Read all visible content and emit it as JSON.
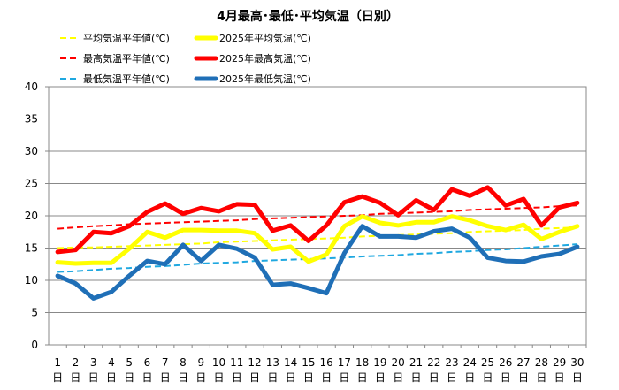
{
  "chart_data": {
    "type": "line",
    "title": "4月最高･最低･平均気温（日別）",
    "ylim": [
      0,
      40
    ],
    "yticks": [
      0,
      5,
      10,
      15,
      20,
      25,
      30,
      35,
      40
    ],
    "grid": true,
    "legend_position": "top",
    "x_day_suffix": "日",
    "x": [
      "1",
      "2",
      "3",
      "4",
      "5",
      "6",
      "7",
      "8",
      "9",
      "10",
      "11",
      "12",
      "13",
      "14",
      "15",
      "16",
      "17",
      "18",
      "19",
      "20",
      "21",
      "22",
      "23",
      "24",
      "25",
      "26",
      "27",
      "28",
      "29",
      "30"
    ],
    "series": [
      {
        "name": "平均気温平年値(℃)",
        "color": "#FFFF00",
        "style": "dashed",
        "values": [
          15.0,
          15.1,
          15.1,
          15.2,
          15.3,
          15.4,
          15.5,
          15.6,
          15.7,
          15.9,
          16.0,
          16.1,
          16.2,
          16.3,
          16.4,
          16.5,
          16.6,
          16.8,
          16.9,
          17.0,
          17.1,
          17.2,
          17.3,
          17.5,
          17.6,
          17.7,
          17.8,
          18.0,
          18.1,
          18.2
        ]
      },
      {
        "name": "2025年平均気温(℃)",
        "color": "#FFFF00",
        "style": "solid",
        "values": [
          12.8,
          12.6,
          12.7,
          12.7,
          14.9,
          17.5,
          16.6,
          17.8,
          17.8,
          17.7,
          17.7,
          17.3,
          14.8,
          15.2,
          12.9,
          14.0,
          18.4,
          19.9,
          18.9,
          18.5,
          19.0,
          19.0,
          19.9,
          19.3,
          18.4,
          17.8,
          18.6,
          16.4,
          17.5,
          18.4
        ]
      },
      {
        "name": "最高気温平年値(℃)",
        "color": "#FF0000",
        "style": "dashed",
        "values": [
          18.0,
          18.2,
          18.4,
          18.5,
          18.7,
          18.8,
          18.9,
          19.0,
          19.1,
          19.2,
          19.3,
          19.5,
          19.6,
          19.7,
          19.8,
          19.9,
          20.0,
          20.1,
          20.3,
          20.4,
          20.5,
          20.6,
          20.7,
          20.9,
          21.0,
          21.1,
          21.2,
          21.3,
          21.5,
          21.6
        ]
      },
      {
        "name": "2025年最高気温(℃)",
        "color": "#FF0000",
        "style": "solid",
        "values": [
          14.4,
          14.7,
          17.5,
          17.3,
          18.4,
          20.6,
          21.9,
          20.3,
          21.2,
          20.7,
          21.8,
          21.7,
          17.7,
          18.5,
          16.1,
          18.5,
          22.1,
          23.0,
          22.0,
          20.1,
          22.4,
          20.9,
          24.1,
          23.1,
          24.4,
          21.6,
          22.6,
          18.5,
          21.3,
          22.0
        ]
      },
      {
        "name": "最低気温平年値(℃)",
        "color": "#1FA8E0",
        "style": "dashed",
        "values": [
          11.3,
          11.4,
          11.6,
          11.8,
          11.9,
          12.1,
          12.2,
          12.4,
          12.6,
          12.7,
          12.8,
          13.0,
          13.1,
          13.2,
          13.3,
          13.4,
          13.5,
          13.7,
          13.8,
          13.9,
          14.1,
          14.2,
          14.4,
          14.5,
          14.7,
          14.8,
          15.0,
          15.2,
          15.4,
          15.6
        ]
      },
      {
        "name": "2025年最低気温(℃)",
        "color": "#1F6FB7",
        "style": "solid",
        "values": [
          10.7,
          9.5,
          7.2,
          8.2,
          10.7,
          13.0,
          12.5,
          15.5,
          13.0,
          15.5,
          14.9,
          13.5,
          9.3,
          9.5,
          8.8,
          8.0,
          14.2,
          18.4,
          16.8,
          16.8,
          16.6,
          17.6,
          18.0,
          16.6,
          13.5,
          13.0,
          12.9,
          13.7,
          14.1,
          15.2
        ]
      }
    ]
  }
}
